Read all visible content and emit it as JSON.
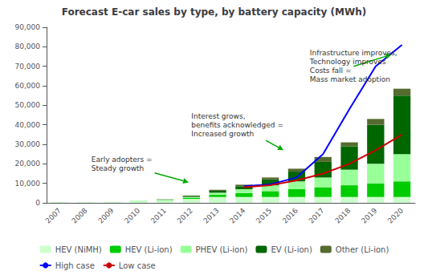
{
  "chart_data": {
    "type": "bar",
    "title": "Forecast E-car sales by type, by battery capacity (MWh)",
    "categories": [
      "2007",
      "2008",
      "2009",
      "2010",
      "2011",
      "2012",
      "2013",
      "2014",
      "2015",
      "2016",
      "2017",
      "2018",
      "2019",
      "2020"
    ],
    "stacked": true,
    "series": [
      {
        "name": "HEV (NiMH)",
        "type": "bar",
        "color": "#ccffcc",
        "values": [
          400,
          350,
          500,
          800,
          1200,
          2000,
          3000,
          3000,
          3000,
          3000,
          3000,
          3000,
          3000,
          3000
        ]
      },
      {
        "name": "HEV (Li-ion)",
        "type": "bar",
        "color": "#00cc00",
        "values": [
          0,
          0,
          0,
          100,
          200,
          500,
          1200,
          2000,
          3000,
          4000,
          5000,
          6000,
          7000,
          8000
        ]
      },
      {
        "name": "PHEV (Li-ion)",
        "type": "bar",
        "color": "#99ff99",
        "values": [
          0,
          0,
          0,
          100,
          200,
          500,
          1000,
          2000,
          3000,
          4000,
          5000,
          8000,
          10000,
          14000
        ]
      },
      {
        "name": "EV (Li-ion)",
        "type": "bar",
        "color": "#006600",
        "values": [
          0,
          0,
          0,
          0,
          100,
          500,
          1000,
          1500,
          3000,
          5000,
          8000,
          12000,
          20000,
          30000
        ]
      },
      {
        "name": "Other (Li-ion)",
        "type": "bar",
        "color": "#556b2f",
        "values": [
          0,
          0,
          0,
          0,
          100,
          300,
          500,
          800,
          1000,
          1500,
          2500,
          2000,
          3000,
          3500
        ]
      },
      {
        "name": "High case",
        "type": "line",
        "color": "#0000ff",
        "values": [
          null,
          null,
          null,
          null,
          null,
          null,
          null,
          8500,
          9500,
          13000,
          25000,
          48000,
          70000,
          81000
        ]
      },
      {
        "name": "Low case",
        "type": "line",
        "color": "#cc0000",
        "values": [
          null,
          null,
          null,
          null,
          null,
          null,
          null,
          8000,
          9000,
          11500,
          15000,
          20000,
          27000,
          35000
        ]
      }
    ],
    "ylim": [
      0,
      90000
    ],
    "yticks": [
      0,
      {
        "value": 10000,
        "label": "10,000"
      },
      {
        "value": 20000,
        "label": "20,000"
      },
      {
        "value": 30000,
        "label": "30,000"
      },
      {
        "value": 40000,
        "label": "40,000"
      },
      {
        "value": 50000,
        "label": "50,000"
      },
      {
        "value": 60000,
        "label": "60,000"
      },
      {
        "value": 70000,
        "label": "70,000"
      },
      {
        "value": 80000,
        "label": "80,000"
      },
      {
        "value": 90000,
        "label": "90,000"
      }
    ],
    "grid": false,
    "legend": "bottom",
    "annotations": [
      "Early adopters =\nSteady growth",
      "Interest grows,\nbenefits acknowledged =\nIncreased growth",
      "Infrastructure improves,\nTechnology improves\nCosts fall =\nMass market adoption"
    ]
  }
}
